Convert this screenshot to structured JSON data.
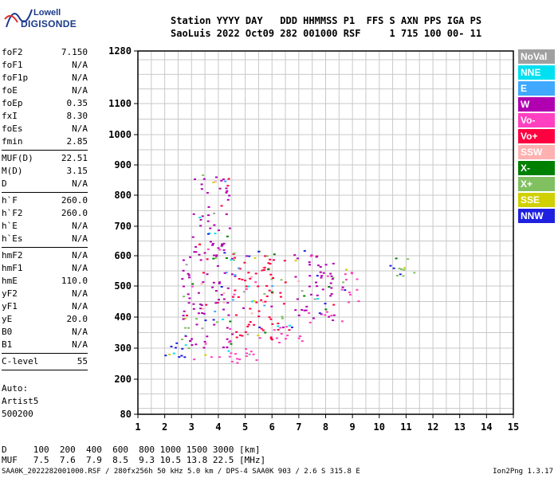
{
  "logo": {
    "line1": "Lowell",
    "line2": "DIGISONDE"
  },
  "header": {
    "line1": "Station YYYY DAY   DDD HHMMSS P1  FFS S AXN PPS IGA PS",
    "line2": "SaoLuis 2022 Oct09 282 001000 RSF     1 715 100 00- 11"
  },
  "params": [
    {
      "key": "foF2",
      "value": "7.150"
    },
    {
      "key": "foF1",
      "value": "N/A"
    },
    {
      "key": "foF1p",
      "value": "N/A"
    },
    {
      "key": "foE",
      "value": "N/A"
    },
    {
      "key": "foEp",
      "value": "0.35"
    },
    {
      "key": "fxI",
      "value": "8.30"
    },
    {
      "key": "foEs",
      "value": "N/A"
    },
    {
      "key": "fmin",
      "value": "2.85"
    },
    {
      "sep": true
    },
    {
      "key": "MUF(D)",
      "value": "22.51"
    },
    {
      "key": "M(D)",
      "value": "3.15"
    },
    {
      "key": "D",
      "value": "N/A"
    },
    {
      "sep": true
    },
    {
      "key": "h`F",
      "value": "260.0"
    },
    {
      "key": "h`F2",
      "value": "260.0"
    },
    {
      "key": "h`E",
      "value": "N/A"
    },
    {
      "key": "h`Es",
      "value": "N/A"
    },
    {
      "sep": true
    },
    {
      "key": "hmF2",
      "value": "N/A"
    },
    {
      "key": "hmF1",
      "value": "N/A"
    },
    {
      "key": "hmE",
      "value": "110.0"
    },
    {
      "key": "yF2",
      "value": "N/A"
    },
    {
      "key": "yF1",
      "value": "N/A"
    },
    {
      "key": "yE",
      "value": "20.0"
    },
    {
      "key": "B0",
      "value": "N/A"
    },
    {
      "key": "B1",
      "value": "N/A"
    },
    {
      "sep": true
    },
    {
      "key": "C-level",
      "value": "55"
    },
    {
      "sep": true
    }
  ],
  "auto": {
    "line1": "Auto:",
    "line2": "Artist5",
    "line3": "500200"
  },
  "bottom": {
    "d_line": "D     100  200  400  600  800 1000 1500 3000 [km]",
    "muf_line": "MUF   7.5  7.6  7.9  8.5  9.3 10.5 13.8 22.5 [MHz]"
  },
  "footer": {
    "left": "SAA0K_2022282001000.RSF / 280fx256h 50 kHz 5.0 km / DPS-4 SAA0K 903 / 2.6 S 315.8 E",
    "right": "Ion2Png 1.3.17"
  },
  "legend": [
    {
      "label": "NoVal",
      "color": "#a0a0a0"
    },
    {
      "label": "NNE",
      "color": "#00e0f0"
    },
    {
      "label": "E",
      "color": "#40a8ff"
    },
    {
      "label": "W",
      "color": "#b000b0"
    },
    {
      "label": "Vo-",
      "color": "#ff40c0"
    },
    {
      "label": "Vo+",
      "color": "#ff0040"
    },
    {
      "label": "SSW",
      "color": "#ffb0b0"
    },
    {
      "label": "X-",
      "color": "#008000"
    },
    {
      "label": "X+",
      "color": "#80c060"
    },
    {
      "label": "SSE",
      "color": "#d0d000"
    },
    {
      "label": "NNW",
      "color": "#2020e0"
    }
  ],
  "chart_data": {
    "type": "scatter",
    "xlim": [
      1,
      15
    ],
    "xticks": [
      1,
      2,
      3,
      4,
      5,
      6,
      7,
      8,
      9,
      10,
      11,
      12,
      13,
      14,
      15
    ],
    "ylim": [
      80,
      1280
    ],
    "yticks": [
      80,
      200,
      300,
      400,
      500,
      600,
      700,
      800,
      900,
      1000,
      1100,
      1280
    ],
    "grid": true,
    "clusters": [
      {
        "x": [
          1.8,
          3.0
        ],
        "y": [
          260,
          320
        ],
        "color": "#2020e0"
      },
      {
        "x": [
          3.0,
          5.5
        ],
        "y": [
          255,
          300
        ],
        "color": "#ff40c0"
      },
      {
        "x": [
          5.5,
          7.2
        ],
        "y": [
          320,
          380
        ],
        "color": "#ff40c0"
      },
      {
        "x": [
          7.2,
          8.6
        ],
        "y": [
          380,
          420
        ],
        "color": "#ff40c0"
      },
      {
        "x": [
          2.6,
          4.6
        ],
        "y": [
          300,
          600
        ],
        "color": "#b000b0"
      },
      {
        "x": [
          4.5,
          6.5
        ],
        "y": [
          330,
          620
        ],
        "color": "#ff0040"
      },
      {
        "x": [
          6.8,
          8.3
        ],
        "y": [
          400,
          620
        ],
        "color": "#b000b0"
      },
      {
        "x": [
          8.5,
          9.3
        ],
        "y": [
          450,
          560
        ],
        "color": "#ff40c0"
      },
      {
        "x": [
          10.3,
          11.3
        ],
        "y": [
          530,
          600
        ],
        "color": "#80c060"
      },
      {
        "x": [
          3.0,
          4.4
        ],
        "y": [
          600,
          870
        ],
        "color": "#b000b0"
      }
    ]
  }
}
